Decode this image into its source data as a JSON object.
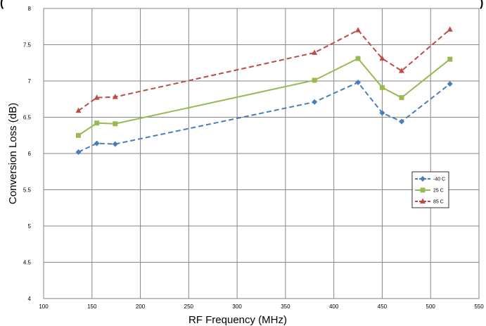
{
  "chart_data": {
    "type": "line",
    "title_fragment_left": "(",
    "title_fragment_right": ")",
    "xlabel": "RF Frequency (MHz)",
    "ylabel": "Conversion Loss (dB)",
    "xlim": [
      100,
      550
    ],
    "ylim": [
      4,
      8
    ],
    "xticks": [
      "100",
      "150",
      "200",
      "250",
      "300",
      "350",
      "400",
      "450",
      "500",
      "550"
    ],
    "yticks": [
      "4",
      "4.5",
      "5",
      "5.5",
      "6",
      "6.5",
      "7",
      "7.5",
      "8"
    ],
    "grid": true,
    "legend_position": "right",
    "x": [
      136,
      155,
      174,
      380,
      425,
      450,
      470,
      520
    ],
    "series": [
      {
        "name": "-40 C",
        "color": "#4a7ebb",
        "dash": "dashed",
        "marker": "diamond",
        "values": [
          6.02,
          6.14,
          6.13,
          6.71,
          6.98,
          6.56,
          6.44,
          6.96
        ]
      },
      {
        "name": "25 C",
        "color": "#98b954",
        "dash": "solid",
        "marker": "square",
        "values": [
          6.25,
          6.42,
          6.41,
          7.01,
          7.31,
          6.91,
          6.77,
          7.3
        ]
      },
      {
        "name": "85 C",
        "color": "#be4b48",
        "dash": "dashed",
        "marker": "triangle",
        "values": [
          6.59,
          6.77,
          6.78,
          7.39,
          7.7,
          7.31,
          7.14,
          7.71
        ]
      }
    ]
  }
}
